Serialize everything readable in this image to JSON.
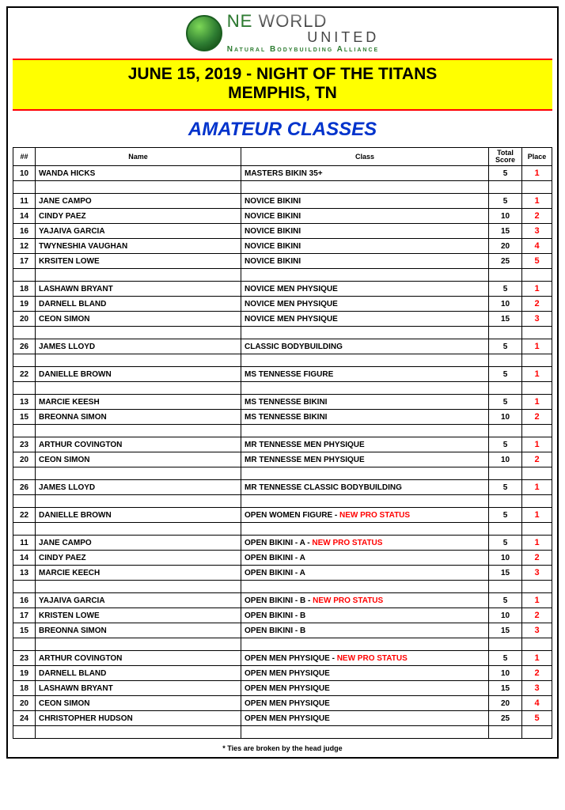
{
  "logo": {
    "line1_prefix": "NE",
    "line1_rest": " WORLD",
    "line2": "UNITED",
    "tagline": "Natural Bodybuilding Alliance"
  },
  "banner": {
    "line1": "JUNE 15, 2019 - NIGHT OF THE TITANS",
    "line2": "MEMPHIS, TN",
    "bg_color": "#ffff00",
    "border_color": "#ff0000"
  },
  "section_title": "AMATEUR CLASSES",
  "section_title_color": "#0033cc",
  "columns": {
    "num": "##",
    "name": "Name",
    "class": "Class",
    "score": "Total Score",
    "place": "Place"
  },
  "place_color": "#ff0000",
  "new_pro_text": "NEW PRO STATUS",
  "new_pro_color": "#ff0000",
  "groups": [
    [
      {
        "num": "10",
        "name": "WANDA HICKS",
        "class": "MASTERS BIKIN 35+",
        "score": "5",
        "place": "1"
      }
    ],
    [
      {
        "num": "11",
        "name": "JANE CAMPO",
        "class": "NOVICE BIKINI",
        "score": "5",
        "place": "1"
      },
      {
        "num": "14",
        "name": "CINDY PAEZ",
        "class": "NOVICE BIKINI",
        "score": "10",
        "place": "2"
      },
      {
        "num": "16",
        "name": "YAJAIVA GARCIA",
        "class": "NOVICE BIKINI",
        "score": "15",
        "place": "3"
      },
      {
        "num": "12",
        "name": "TWYNESHIA VAUGHAN",
        "class": "NOVICE BIKINI",
        "score": "20",
        "place": "4"
      },
      {
        "num": "17",
        "name": "KRSITEN LOWE",
        "class": "NOVICE BIKINI",
        "score": "25",
        "place": "5"
      }
    ],
    [
      {
        "num": "18",
        "name": "LASHAWN BRYANT",
        "class": "NOVICE MEN PHYSIQUE",
        "score": "5",
        "place": "1"
      },
      {
        "num": "19",
        "name": "DARNELL BLAND",
        "class": "NOVICE MEN PHYSIQUE",
        "score": "10",
        "place": "2"
      },
      {
        "num": "20",
        "name": "CEON SIMON",
        "class": "NOVICE MEN PHYSIQUE",
        "score": "15",
        "place": "3"
      }
    ],
    [
      {
        "num": "26",
        "name": "JAMES LLOYD",
        "class": "CLASSIC BODYBUILDING",
        "score": "5",
        "place": "1"
      }
    ],
    [
      {
        "num": "22",
        "name": "DANIELLE BROWN",
        "class": "MS TENNESSE FIGURE",
        "score": "5",
        "place": "1"
      }
    ],
    [
      {
        "num": "13",
        "name": "MARCIE KEESH",
        "class": "MS TENNESSE BIKINI",
        "score": "5",
        "place": "1"
      },
      {
        "num": "15",
        "name": "BREONNA SIMON",
        "class": "MS TENNESSE BIKINI",
        "score": "10",
        "place": "2"
      }
    ],
    [
      {
        "num": "23",
        "name": "ARTHUR COVINGTON",
        "class": "MR TENNESSE MEN PHYSIQUE",
        "score": "5",
        "place": "1"
      },
      {
        "num": "20",
        "name": "CEON SIMON",
        "class": "MR TENNESSE MEN PHYSIQUE",
        "score": "10",
        "place": "2"
      }
    ],
    [
      {
        "num": "26",
        "name": "JAMES LLOYD",
        "class": "MR TENNESSE CLASSIC BODYBUILDING",
        "score": "5",
        "place": "1"
      }
    ],
    [
      {
        "num": "22",
        "name": "DANIELLE BROWN",
        "class": "OPEN WOMEN FIGURE",
        "new_pro": true,
        "score": "5",
        "place": "1"
      }
    ],
    [
      {
        "num": "11",
        "name": "JANE CAMPO",
        "class": "OPEN BIKINI - A",
        "new_pro": true,
        "score": "5",
        "place": "1"
      },
      {
        "num": "14",
        "name": "CINDY PAEZ",
        "class": "OPEN BIKINI - A",
        "score": "10",
        "place": "2"
      },
      {
        "num": "13",
        "name": "MARCIE KEECH",
        "class": "OPEN BIKINI - A",
        "score": "15",
        "place": "3"
      }
    ],
    [
      {
        "num": "16",
        "name": "YAJAIVA GARCIA",
        "class": "OPEN BIKINI - B",
        "new_pro": true,
        "score": "5",
        "place": "1"
      },
      {
        "num": "17",
        "name": "KRISTEN LOWE",
        "class": "OPEN BIKINI - B",
        "score": "10",
        "place": "2"
      },
      {
        "num": "15",
        "name": "BREONNA SIMON",
        "class": "OPEN BIKINI - B",
        "score": "15",
        "place": "3"
      }
    ],
    [
      {
        "num": "23",
        "name": "ARTHUR COVINGTON",
        "class": "OPEN MEN PHYSIQUE",
        "new_pro": true,
        "score": "5",
        "place": "1"
      },
      {
        "num": "19",
        "name": "DARNELL BLAND",
        "class": "OPEN MEN PHYSIQUE",
        "score": "10",
        "place": "2"
      },
      {
        "num": "18",
        "name": "LASHAWN BRYANT",
        "class": "OPEN MEN PHYSIQUE",
        "score": "15",
        "place": "3"
      },
      {
        "num": "20",
        "name": "CEON SIMON",
        "class": "OPEN MEN PHYSIQUE",
        "score": "20",
        "place": "4"
      },
      {
        "num": "24",
        "name": "CHRISTOPHER HUDSON",
        "class": "OPEN MEN PHYSIQUE",
        "score": "25",
        "place": "5"
      }
    ]
  ],
  "footnote": "* Ties are broken by the head judge"
}
